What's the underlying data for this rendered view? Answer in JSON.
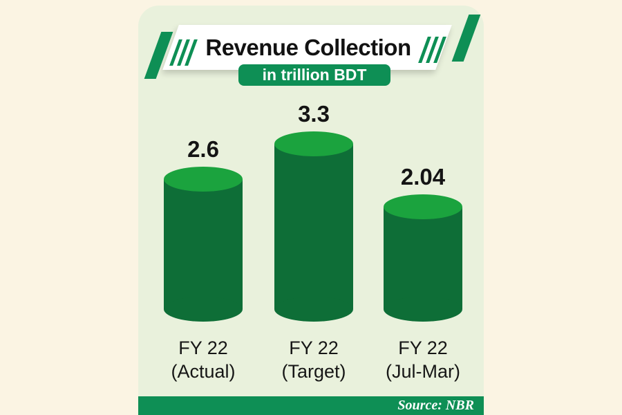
{
  "colors": {
    "page_bg": "#fbf4e3",
    "card_bg": "#e9f1dc",
    "accent_green": "#0e8f55",
    "bar_body_green": "#0e6e37",
    "bar_top_green": "#1ba33e"
  },
  "header": {
    "title": "Revenue Collection",
    "subtitle": "in trillion BDT"
  },
  "chart_data": {
    "type": "bar",
    "title": "Revenue Collection",
    "subtitle": "in trillion BDT",
    "unit": "trillion BDT",
    "categories": [
      "FY 22 (Actual)",
      "FY 22 (Target)",
      "FY 22 (Jul-Mar)"
    ],
    "category_lines": [
      [
        "FY 22",
        "(Actual)"
      ],
      [
        "FY 22",
        "(Target)"
      ],
      [
        "FY 22",
        "(Jul-Mar)"
      ]
    ],
    "values": [
      2.6,
      3.3,
      2.04
    ],
    "value_labels": [
      "2.6",
      "3.3",
      "2.04"
    ],
    "ylim": [
      0,
      3.5
    ],
    "grid": false,
    "legend": false,
    "bar_style": "cylinder"
  },
  "footer": {
    "source_label": "Source: NBR"
  }
}
